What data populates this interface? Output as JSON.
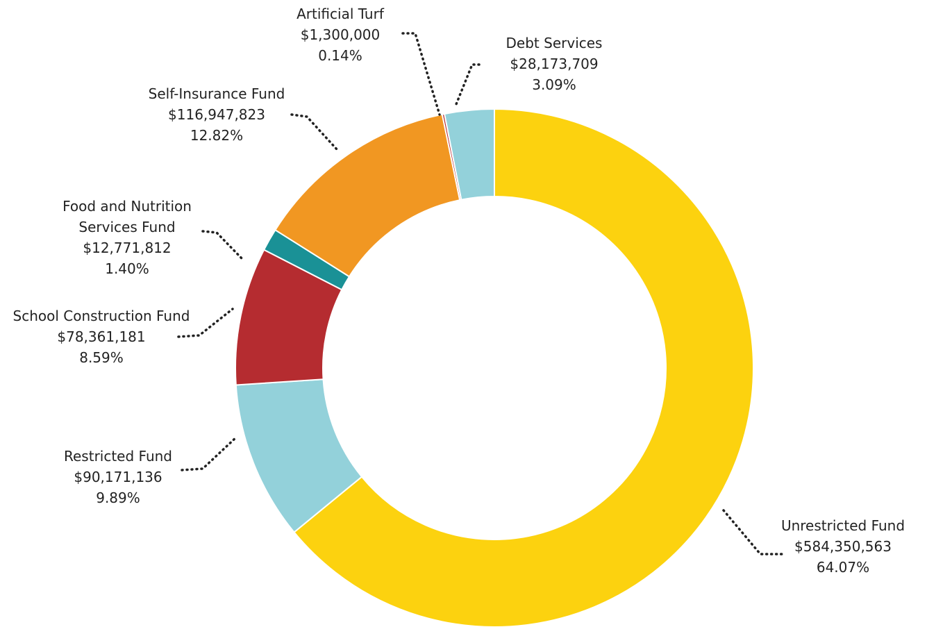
{
  "chart_data": {
    "type": "donut",
    "categories": [
      "Unrestricted Fund",
      "Restricted Fund",
      "School Construction Fund",
      "Food and Nutrition Services Fund",
      "Self-Insurance Fund",
      "Artificial Turf",
      "Debt Services"
    ],
    "values": [
      584350563,
      90171136,
      78361181,
      12771812,
      116947823,
      1300000,
      28173709
    ],
    "value_labels": [
      "$584,350,563",
      "$90,171,136",
      "$78,361,181",
      "$12,771,812",
      "$116,947,823",
      "$1,300,000",
      "$28,173,709"
    ],
    "percent_labels": [
      "64.07%",
      "9.89%",
      "8.59%",
      "1.40%",
      "12.82%",
      "0.14%",
      "3.09%"
    ],
    "colors": [
      "#fcd20f",
      "#93d1da",
      "#b52c30",
      "#1a9196",
      "#f19722",
      "#b52c30",
      "#93d1da"
    ]
  }
}
